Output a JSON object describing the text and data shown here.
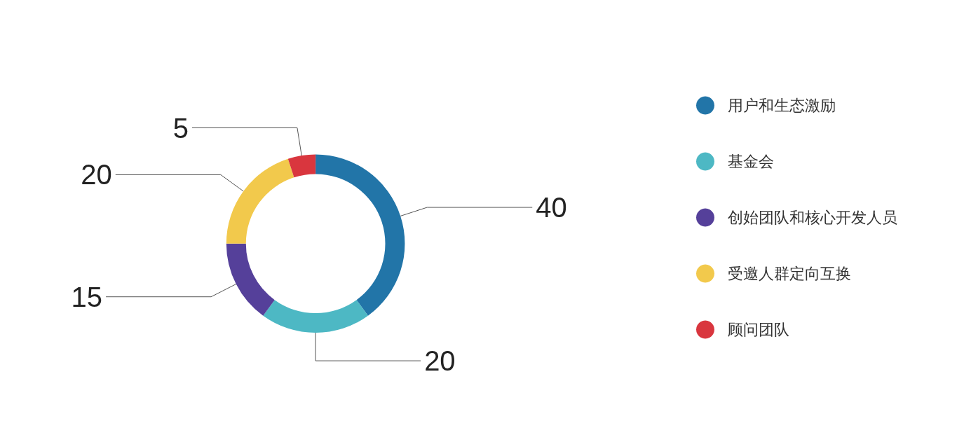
{
  "chart_data": {
    "type": "donut",
    "categories": [
      "用户和生态激励",
      "基金会",
      "创始团队和核心开发人员",
      "受邀人群定向互换",
      "顾问团队"
    ],
    "values": [
      40,
      20,
      15,
      20,
      5
    ],
    "colors": [
      "#2275a8",
      "#4db8c4",
      "#55409a",
      "#f2c94c",
      "#d9363e"
    ],
    "data_labels": true,
    "legend": "right"
  }
}
